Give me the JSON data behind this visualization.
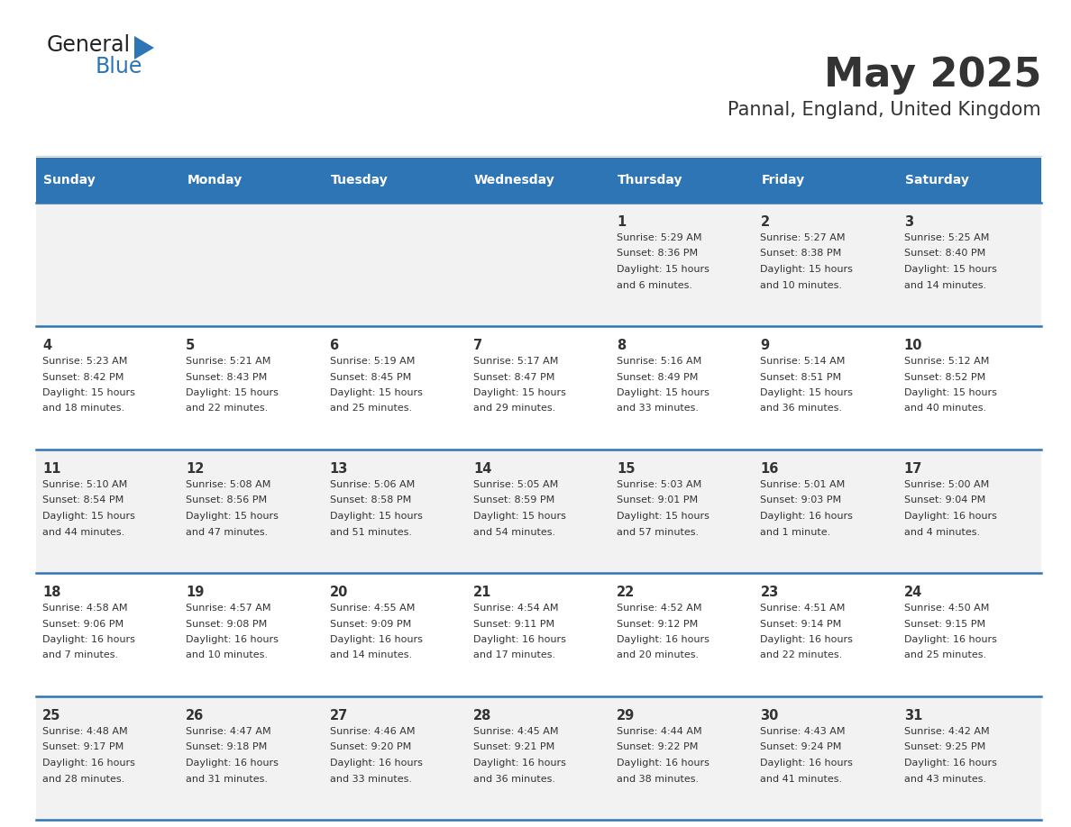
{
  "title": "May 2025",
  "subtitle": "Pannal, England, United Kingdom",
  "header_bg": "#2E75B6",
  "header_text_color": "#FFFFFF",
  "row_bg_odd": "#F2F2F2",
  "row_bg_even": "#FFFFFF",
  "cell_border_color": "#2E75B6",
  "text_color": "#333333",
  "days_of_week": [
    "Sunday",
    "Monday",
    "Tuesday",
    "Wednesday",
    "Thursday",
    "Friday",
    "Saturday"
  ],
  "calendar": [
    [
      {
        "day": "",
        "sunrise": "",
        "sunset": "",
        "daylight_h": "",
        "daylight_m": ""
      },
      {
        "day": "",
        "sunrise": "",
        "sunset": "",
        "daylight_h": "",
        "daylight_m": ""
      },
      {
        "day": "",
        "sunrise": "",
        "sunset": "",
        "daylight_h": "",
        "daylight_m": ""
      },
      {
        "day": "",
        "sunrise": "",
        "sunset": "",
        "daylight_h": "",
        "daylight_m": ""
      },
      {
        "day": "1",
        "sunrise": "5:29 AM",
        "sunset": "8:36 PM",
        "daylight_h": "15 hours",
        "daylight_m": "and 6 minutes."
      },
      {
        "day": "2",
        "sunrise": "5:27 AM",
        "sunset": "8:38 PM",
        "daylight_h": "15 hours",
        "daylight_m": "and 10 minutes."
      },
      {
        "day": "3",
        "sunrise": "5:25 AM",
        "sunset": "8:40 PM",
        "daylight_h": "15 hours",
        "daylight_m": "and 14 minutes."
      }
    ],
    [
      {
        "day": "4",
        "sunrise": "5:23 AM",
        "sunset": "8:42 PM",
        "daylight_h": "15 hours",
        "daylight_m": "and 18 minutes."
      },
      {
        "day": "5",
        "sunrise": "5:21 AM",
        "sunset": "8:43 PM",
        "daylight_h": "15 hours",
        "daylight_m": "and 22 minutes."
      },
      {
        "day": "6",
        "sunrise": "5:19 AM",
        "sunset": "8:45 PM",
        "daylight_h": "15 hours",
        "daylight_m": "and 25 minutes."
      },
      {
        "day": "7",
        "sunrise": "5:17 AM",
        "sunset": "8:47 PM",
        "daylight_h": "15 hours",
        "daylight_m": "and 29 minutes."
      },
      {
        "day": "8",
        "sunrise": "5:16 AM",
        "sunset": "8:49 PM",
        "daylight_h": "15 hours",
        "daylight_m": "and 33 minutes."
      },
      {
        "day": "9",
        "sunrise": "5:14 AM",
        "sunset": "8:51 PM",
        "daylight_h": "15 hours",
        "daylight_m": "and 36 minutes."
      },
      {
        "day": "10",
        "sunrise": "5:12 AM",
        "sunset": "8:52 PM",
        "daylight_h": "15 hours",
        "daylight_m": "and 40 minutes."
      }
    ],
    [
      {
        "day": "11",
        "sunrise": "5:10 AM",
        "sunset": "8:54 PM",
        "daylight_h": "15 hours",
        "daylight_m": "and 44 minutes."
      },
      {
        "day": "12",
        "sunrise": "5:08 AM",
        "sunset": "8:56 PM",
        "daylight_h": "15 hours",
        "daylight_m": "and 47 minutes."
      },
      {
        "day": "13",
        "sunrise": "5:06 AM",
        "sunset": "8:58 PM",
        "daylight_h": "15 hours",
        "daylight_m": "and 51 minutes."
      },
      {
        "day": "14",
        "sunrise": "5:05 AM",
        "sunset": "8:59 PM",
        "daylight_h": "15 hours",
        "daylight_m": "and 54 minutes."
      },
      {
        "day": "15",
        "sunrise": "5:03 AM",
        "sunset": "9:01 PM",
        "daylight_h": "15 hours",
        "daylight_m": "and 57 minutes."
      },
      {
        "day": "16",
        "sunrise": "5:01 AM",
        "sunset": "9:03 PM",
        "daylight_h": "16 hours",
        "daylight_m": "and 1 minute."
      },
      {
        "day": "17",
        "sunrise": "5:00 AM",
        "sunset": "9:04 PM",
        "daylight_h": "16 hours",
        "daylight_m": "and 4 minutes."
      }
    ],
    [
      {
        "day": "18",
        "sunrise": "4:58 AM",
        "sunset": "9:06 PM",
        "daylight_h": "16 hours",
        "daylight_m": "and 7 minutes."
      },
      {
        "day": "19",
        "sunrise": "4:57 AM",
        "sunset": "9:08 PM",
        "daylight_h": "16 hours",
        "daylight_m": "and 10 minutes."
      },
      {
        "day": "20",
        "sunrise": "4:55 AM",
        "sunset": "9:09 PM",
        "daylight_h": "16 hours",
        "daylight_m": "and 14 minutes."
      },
      {
        "day": "21",
        "sunrise": "4:54 AM",
        "sunset": "9:11 PM",
        "daylight_h": "16 hours",
        "daylight_m": "and 17 minutes."
      },
      {
        "day": "22",
        "sunrise": "4:52 AM",
        "sunset": "9:12 PM",
        "daylight_h": "16 hours",
        "daylight_m": "and 20 minutes."
      },
      {
        "day": "23",
        "sunrise": "4:51 AM",
        "sunset": "9:14 PM",
        "daylight_h": "16 hours",
        "daylight_m": "and 22 minutes."
      },
      {
        "day": "24",
        "sunrise": "4:50 AM",
        "sunset": "9:15 PM",
        "daylight_h": "16 hours",
        "daylight_m": "and 25 minutes."
      }
    ],
    [
      {
        "day": "25",
        "sunrise": "4:48 AM",
        "sunset": "9:17 PM",
        "daylight_h": "16 hours",
        "daylight_m": "and 28 minutes."
      },
      {
        "day": "26",
        "sunrise": "4:47 AM",
        "sunset": "9:18 PM",
        "daylight_h": "16 hours",
        "daylight_m": "and 31 minutes."
      },
      {
        "day": "27",
        "sunrise": "4:46 AM",
        "sunset": "9:20 PM",
        "daylight_h": "16 hours",
        "daylight_m": "and 33 minutes."
      },
      {
        "day": "28",
        "sunrise": "4:45 AM",
        "sunset": "9:21 PM",
        "daylight_h": "16 hours",
        "daylight_m": "and 36 minutes."
      },
      {
        "day": "29",
        "sunrise": "4:44 AM",
        "sunset": "9:22 PM",
        "daylight_h": "16 hours",
        "daylight_m": "and 38 minutes."
      },
      {
        "day": "30",
        "sunrise": "4:43 AM",
        "sunset": "9:24 PM",
        "daylight_h": "16 hours",
        "daylight_m": "and 41 minutes."
      },
      {
        "day": "31",
        "sunrise": "4:42 AM",
        "sunset": "9:25 PM",
        "daylight_h": "16 hours",
        "daylight_m": "and 43 minutes."
      }
    ]
  ],
  "logo_text1": "General",
  "logo_text2": "Blue",
  "logo_color1": "#222222",
  "logo_color2": "#2E75B6",
  "logo_triangle_color": "#2E75B6",
  "figsize": [
    11.88,
    9.18
  ],
  "dpi": 100
}
